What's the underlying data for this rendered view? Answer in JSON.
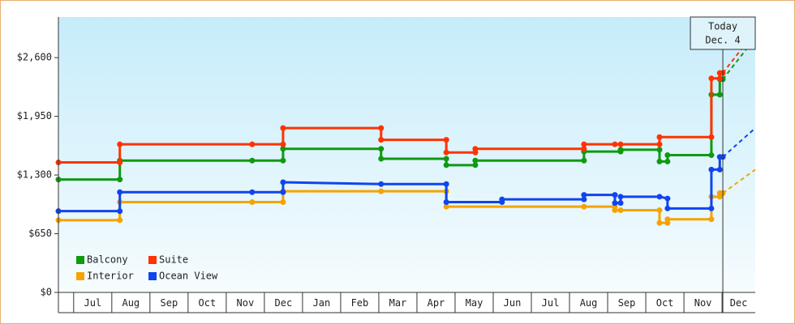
{
  "chart_data": {
    "type": "step-line",
    "xlim": [
      -0.4,
      17.87
    ],
    "ylim": [
      0,
      3050
    ],
    "yticks": [
      {
        "value": 0,
        "label": "$0"
      },
      {
        "value": 650,
        "label": "$650"
      },
      {
        "value": 1300,
        "label": "$1,300"
      },
      {
        "value": 1950,
        "label": "$1,950"
      },
      {
        "value": 2600,
        "label": "$2,600"
      }
    ],
    "xticks": [
      {
        "value": 0.5,
        "label": "Jul"
      },
      {
        "value": 1.5,
        "label": "Aug"
      },
      {
        "value": 2.5,
        "label": "Sep"
      },
      {
        "value": 3.5,
        "label": "Oct"
      },
      {
        "value": 4.5,
        "label": "Nov"
      },
      {
        "value": 5.5,
        "label": "Dec"
      },
      {
        "value": 6.5,
        "label": "Jan"
      },
      {
        "value": 7.5,
        "label": "Feb"
      },
      {
        "value": 8.5,
        "label": "Mar"
      },
      {
        "value": 9.5,
        "label": "Apr"
      },
      {
        "value": 10.5,
        "label": "May"
      },
      {
        "value": 11.5,
        "label": "Jun"
      },
      {
        "value": 12.5,
        "label": "Jul"
      },
      {
        "value": 13.5,
        "label": "Aug"
      },
      {
        "value": 14.5,
        "label": "Sep"
      },
      {
        "value": 15.5,
        "label": "Oct"
      },
      {
        "value": 16.5,
        "label": "Nov"
      },
      {
        "value": 17.5,
        "label": "Dec"
      }
    ],
    "annotation": {
      "lines": [
        "Today",
        "Dec. 4"
      ],
      "x": 17.02
    },
    "legend": "lower left",
    "series": [
      {
        "name": "Balcony",
        "color": "#119911",
        "x": [
          -0.4,
          1.21,
          1.21,
          4.68,
          5.49,
          5.49,
          8.06,
          8.06,
          9.77,
          9.77,
          10.53,
          10.53,
          13.38,
          13.38,
          14.34,
          14.34,
          15.36,
          15.36,
          15.57,
          15.57,
          16.72,
          16.72,
          16.94,
          16.94,
          17.02
        ],
        "values": [
          1250,
          1250,
          1460,
          1460,
          1460,
          1590,
          1590,
          1480,
          1480,
          1410,
          1410,
          1460,
          1460,
          1560,
          1560,
          1580,
          1580,
          1450,
          1450,
          1520,
          1520,
          2190,
          2190,
          2360,
          2360
        ],
        "forecast_x": [
          17.02,
          17.87
        ],
        "forecast_values": [
          2360,
          2820
        ]
      },
      {
        "name": "Suite",
        "color": "#ff3300",
        "x": [
          -0.4,
          1.21,
          1.21,
          4.68,
          5.49,
          5.49,
          8.06,
          8.06,
          9.77,
          9.77,
          10.53,
          10.53,
          13.38,
          13.38,
          14.19,
          14.34,
          15.36,
          15.36,
          16.72,
          16.72,
          16.94,
          16.94,
          17.02
        ],
        "values": [
          1440,
          1440,
          1640,
          1640,
          1640,
          1820,
          1820,
          1690,
          1690,
          1550,
          1550,
          1590,
          1590,
          1640,
          1640,
          1640,
          1640,
          1720,
          1720,
          2370,
          2370,
          2430,
          2430
        ],
        "forecast_x": [
          17.02,
          17.87
        ],
        "forecast_values": [
          2430,
          2890
        ]
      },
      {
        "name": "Interior",
        "color": "#f5a300",
        "x": [
          -0.4,
          1.21,
          1.21,
          4.68,
          5.49,
          5.49,
          8.06,
          9.77,
          9.77,
          13.38,
          14.19,
          14.19,
          14.34,
          15.36,
          15.36,
          15.57,
          15.57,
          16.72,
          16.72,
          16.94,
          16.94,
          17.02
        ],
        "values": [
          800,
          800,
          1000,
          1000,
          1000,
          1120,
          1120,
          1120,
          950,
          950,
          950,
          910,
          910,
          910,
          770,
          770,
          810,
          810,
          1060,
          1060,
          1100,
          1100
        ],
        "forecast_x": [
          17.02,
          17.87
        ],
        "forecast_values": [
          1100,
          1360
        ]
      },
      {
        "name": "Ocean View",
        "color": "#1144ee",
        "x": [
          -0.4,
          1.21,
          1.21,
          4.68,
          5.49,
          5.49,
          8.06,
          9.77,
          9.77,
          11.23,
          11.23,
          13.38,
          13.38,
          14.19,
          14.19,
          14.34,
          14.34,
          15.36,
          15.57,
          15.57,
          16.72,
          16.72,
          16.94,
          16.94,
          17.02
        ],
        "values": [
          900,
          900,
          1110,
          1110,
          1110,
          1220,
          1200,
          1200,
          1000,
          1000,
          1030,
          1030,
          1080,
          1080,
          990,
          990,
          1060,
          1060,
          1040,
          930,
          930,
          1360,
          1360,
          1500,
          1500
        ],
        "forecast_x": [
          17.02,
          17.87
        ],
        "forecast_values": [
          1500,
          1820
        ]
      }
    ]
  }
}
